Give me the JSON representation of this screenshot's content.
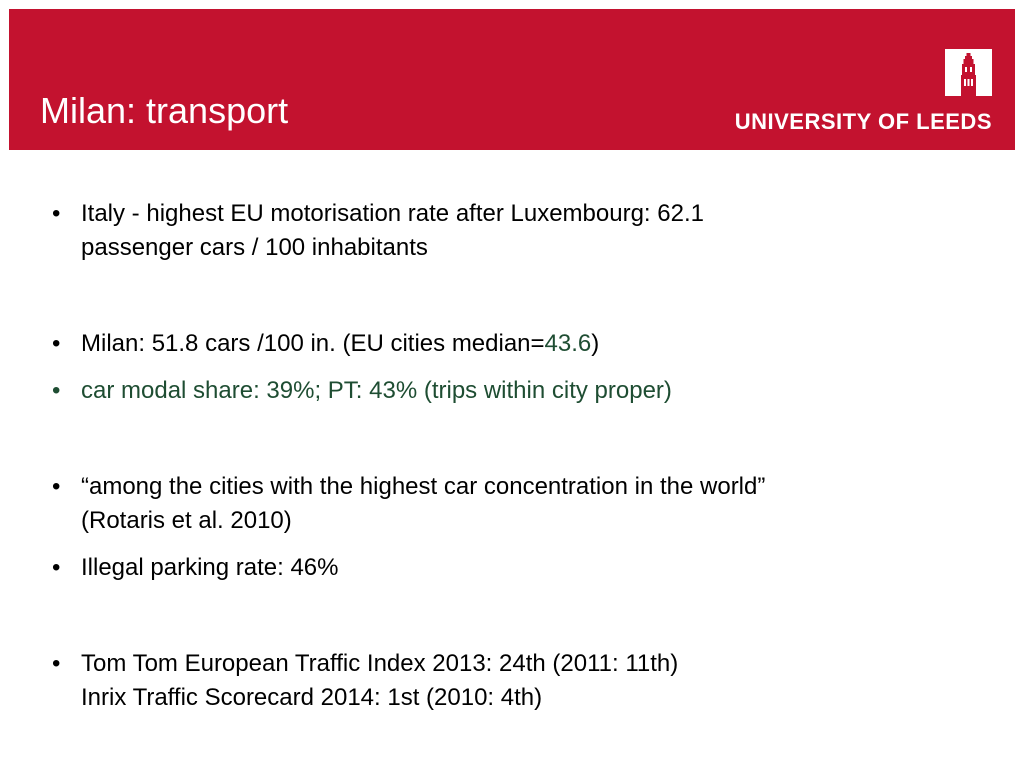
{
  "header": {
    "title": "Milan: transport",
    "logo_text": "UNIVERSITY OF LEEDS",
    "brand_color": "#c3122f",
    "logo_icon": "university-tower-icon"
  },
  "accent_color": "#1e4d32",
  "bullet_symbol": "•",
  "bullets": [
    {
      "lines": [
        "Italy - highest EU motorisation rate after Luxembourg: 62.1",
        "passenger cars / 100 inhabitants"
      ]
    },
    {
      "before": "Milan: 51.8 cars /100 in. (EU cities median=",
      "highlight": "43.6",
      "after": ")"
    },
    {
      "text": "car modal share: 39%; PT: 43% (trips within city proper)"
    },
    {
      "lines": [
        "“among the cities with the highest car concentration in the world”",
        "(Rotaris et al. 2010)"
      ]
    },
    {
      "text": "Illegal parking rate: 46%"
    },
    {
      "lines": [
        "Tom Tom European Traffic Index 2013: 24th (2011: 11th)",
        "Inrix Traffic Scorecard 2014: 1st (2010: 4th)"
      ]
    }
  ]
}
